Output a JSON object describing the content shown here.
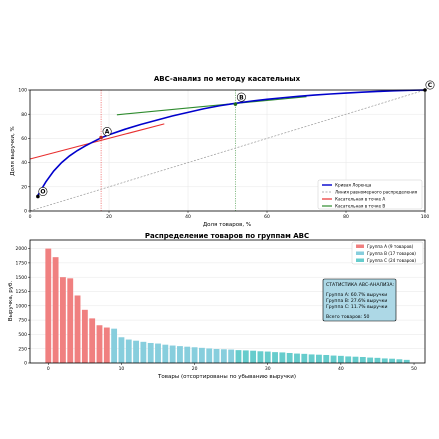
{
  "chart_data": [
    {
      "type": "line",
      "title": "ABC-анализ по методу касательных",
      "xlabel": "Доля товаров, %",
      "ylabel": "Доля выручки, %",
      "xlim": [
        0,
        100
      ],
      "ylim": [
        0,
        100
      ],
      "xticks": [
        0,
        20,
        40,
        60,
        80,
        100
      ],
      "yticks": [
        0,
        20,
        40,
        60,
        80,
        100
      ],
      "grid": true,
      "legend_position": "lower-right",
      "series": [
        {
          "name": "Кривая Лоренца",
          "color": "#0000cc",
          "x": [
            2,
            4,
            6,
            8,
            10,
            12,
            14,
            16,
            18,
            20,
            24,
            28,
            32,
            36,
            40,
            44,
            48,
            52,
            56,
            60,
            64,
            68,
            72,
            76,
            80,
            84,
            88,
            92,
            96,
            100
          ],
          "y": [
            13.0,
            24.0,
            33.0,
            40.0,
            45.5,
            50.0,
            53.8,
            57.2,
            60.5,
            63.0,
            67.5,
            71.5,
            75.0,
            78.5,
            81.5,
            84.5,
            87.0,
            89.0,
            90.8,
            92.3,
            93.6,
            94.8,
            95.8,
            96.7,
            97.5,
            98.2,
            98.8,
            99.3,
            99.7,
            100.0
          ]
        },
        {
          "name": "Линия равномерного распределения",
          "color": "#999999",
          "x": [
            0,
            100
          ],
          "y": [
            0,
            100
          ]
        },
        {
          "name": "Касательная в точке A",
          "color": "#e83030",
          "x": [
            0,
            34
          ],
          "y": [
            43,
            72
          ]
        },
        {
          "name": "Касательная в точке B",
          "color": "#2e8b2e",
          "x": [
            22,
            70
          ],
          "y": [
            79.5,
            94.5
          ]
        }
      ],
      "points": [
        {
          "label": "O",
          "x": 2,
          "y": 12
        },
        {
          "label": "A",
          "x": 18,
          "y": 60.7
        },
        {
          "label": "B",
          "x": 52,
          "y": 88.3
        },
        {
          "label": "C",
          "x": 100,
          "y": 100
        }
      ],
      "vlines": [
        {
          "x": 18,
          "color": "#e83030"
        },
        {
          "x": 52,
          "color": "#2e8b2e"
        }
      ]
    },
    {
      "type": "bar",
      "title": "Распределение товаров по группам ABC",
      "xlabel": "Товары (отсортированы по убыванию выручки)",
      "ylabel": "Выручка, руб.",
      "xlim": [
        -2.5,
        51.5
      ],
      "ylim": [
        0,
        2150
      ],
      "xticks": [
        0,
        10,
        20,
        30,
        40,
        50
      ],
      "yticks": [
        0,
        250,
        500,
        750,
        1000,
        1250,
        1500,
        1750,
        2000
      ],
      "grid": true,
      "legend_position": "top-right",
      "groups": [
        {
          "name": "Группа A (9 товаров)",
          "color": "#f08080",
          "count": 9
        },
        {
          "name": "Группа B (17 товаров)",
          "color": "#87cedd",
          "count": 17
        },
        {
          "name": "Группа C (24 товаров)",
          "color": "#66cccc",
          "count": 24
        }
      ],
      "values": [
        2000,
        1850,
        1500,
        1480,
        1180,
        930,
        780,
        660,
        620,
        600,
        450,
        410,
        390,
        370,
        350,
        340,
        320,
        305,
        295,
        285,
        275,
        265,
        255,
        245,
        240,
        235,
        225,
        220,
        215,
        205,
        200,
        190,
        185,
        175,
        165,
        160,
        150,
        145,
        140,
        130,
        125,
        115,
        110,
        105,
        95,
        90,
        80,
        75,
        65,
        55
      ],
      "stats": {
        "title": "СТАТИСТИКА ABC-АНАЛИЗА:",
        "lines": [
          "Группа A: 60.7% выручки",
          "Группа B: 27.6% выручки",
          "Группа C: 11.7% выручки"
        ],
        "total": "Всего товаров: 50"
      }
    }
  ]
}
